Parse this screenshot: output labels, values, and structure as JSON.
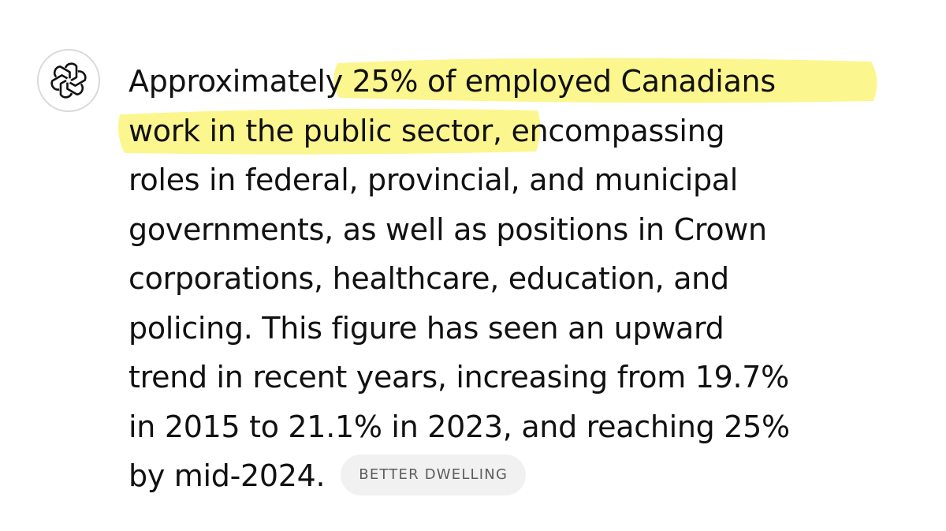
{
  "message": {
    "lines": [
      "Approximately 25% of employed Canadians",
      "work in the public sector, encompassing",
      "roles in federal, provincial, and municipal",
      "governments, as well as positions in Crown",
      "corporations, healthcare, education, and",
      "policing. This figure has seen an upward",
      "trend in recent years, increasing from 19.7%",
      "in 2015 to 21.1% in 2023, and reaching 25%",
      "by mid-2024."
    ],
    "source": "BETTER DWELLING"
  }
}
